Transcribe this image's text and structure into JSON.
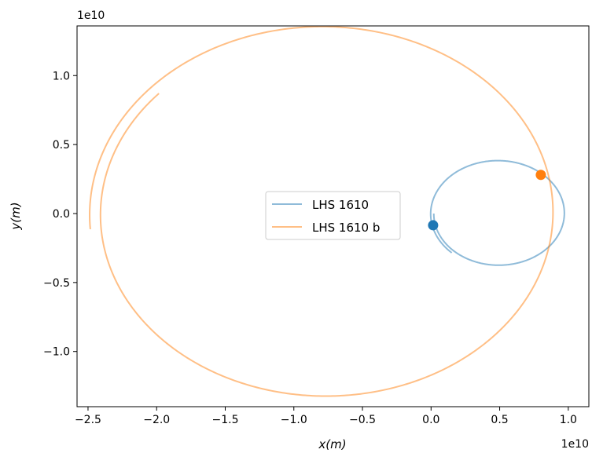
{
  "chart_data": {
    "type": "line",
    "title": "",
    "xlabel": "x(m)",
    "ylabel": "y(m)",
    "x_offset_label": "1e10",
    "y_offset_label": "1e10",
    "xlim": [
      -2.58,
      1.15
    ],
    "ylim": [
      -1.4,
      1.36
    ],
    "xticks": [
      -2.5,
      -2.0,
      -1.5,
      -1.0,
      -0.5,
      0.0,
      0.5,
      1.0
    ],
    "xtick_labels": [
      "−2.5",
      "−2.0",
      "−1.5",
      "−1.0",
      "−0.5",
      "0.0",
      "0.5",
      "1.0"
    ],
    "yticks": [
      1.0,
      0.5,
      0.0,
      -0.5,
      -1.0
    ],
    "ytick_labels": [
      "1.0",
      "0.5",
      "0.0",
      "−0.5",
      "−1.0"
    ],
    "grid": false,
    "legend_position": "center",
    "series": [
      {
        "name": "LHS 1610",
        "color": "#1f77b4",
        "orbit_ellipse": {
          "center_x": 0.49,
          "center_y": 0.0,
          "semi_axis_x": 0.47,
          "semi_axis_y": 0.37
        },
        "start": [
          0.01,
          0.0
        ],
        "current_position": [
          0.015,
          -0.085
        ]
      },
      {
        "name": "LHS 1610 b",
        "color": "#ff7f0e",
        "orbit_ellipse": {
          "center_x": -0.78,
          "center_y": 0.0,
          "semi_axis_x": 1.62,
          "semi_axis_y": 1.3
        },
        "start": [
          -1.83,
          0.76
        ],
        "current_position": [
          0.8,
          0.28
        ]
      }
    ]
  }
}
